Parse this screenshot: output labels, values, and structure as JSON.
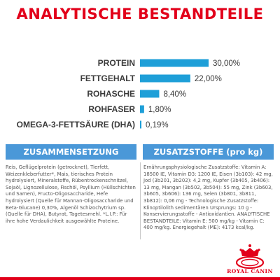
{
  "title": "ANALYTISCHE BESTANDTEILE",
  "chart_data": {
    "type": "bar",
    "orientation": "horizontal",
    "categories": [
      "PROTEIN",
      "FETTGEHALT",
      "ROHASCHE",
      "ROHFASER",
      "OMEGA-3-FETTSÄURE (DHA)"
    ],
    "values": [
      30.0,
      22.0,
      8.4,
      1.8,
      0.19
    ],
    "value_labels": [
      "30,00%",
      "22,00%",
      "8,40%",
      "1,80%",
      "0,19%"
    ],
    "unit": "%",
    "bar_color": "#1e9fd8",
    "grid": false,
    "legend": "none"
  },
  "sections": {
    "composition": {
      "header": "ZUSAMMENSETZUNG",
      "text": "Reis, Geflügelprotein (getrocknet), Tierfett, Weizenkleberfutter*, Mais, tierisches Protein hydrolysiert, Mineralstoffe, Rübentrockenschnitzel, Sojaöl, Lignozellulose, Fischöl, Psyllium (Hüllschichten und Samen), Fructo-Oligosaccharide, Hefe hydrolysiert (Quelle für Mannan-Oligosaccharide und Beta-Glucane) 0,30%, Algenöl Schizochytrium sp. (Quelle für DHA), Butyrat, Tagetesmehl. *L.I.P.: Für ihre hohe Verdaulichkeit ausgewählte Proteine."
    },
    "additives": {
      "header": "ZUSATZSTOFFE (pro kg)",
      "text": "Ernährungsphysiologische Zusatzstoffe: Vitamin A: 18500 IE, Vitamin D3: 1200 IE, Eisen (3b103): 42 mg, Jod (3b201, 3b202): 4,2 mg, Kupfer (3b405, 3b406): 13 mg, Mangan (3b502, 3b504): 55 mg, Zink (3b603, 3b605, 3b606): 136 mg, Selen (3b801, 3b811, 3b812): 0,06 mg - Technologische Zusatzstoffe: Klinoptilolith sedimentären Ursprungs: 10 g - Konservierungsstoffe - Antioxidantien. ANALYTISCHE BESTANDTEILE: Vitamin E: 500 mg/kg - Vitamin C: 400 mg/kg. Energiegehalt (ME): 4173 kcal/kg."
    }
  },
  "colors": {
    "title_red": "#e2001a",
    "band_blue": "#4a98d8",
    "bar_blue": "#1e9fd8",
    "text_gray": "#555555"
  },
  "logo": {
    "icon": "royal-canin-crown-logo",
    "wordmark": "ROYAL CANIN"
  }
}
